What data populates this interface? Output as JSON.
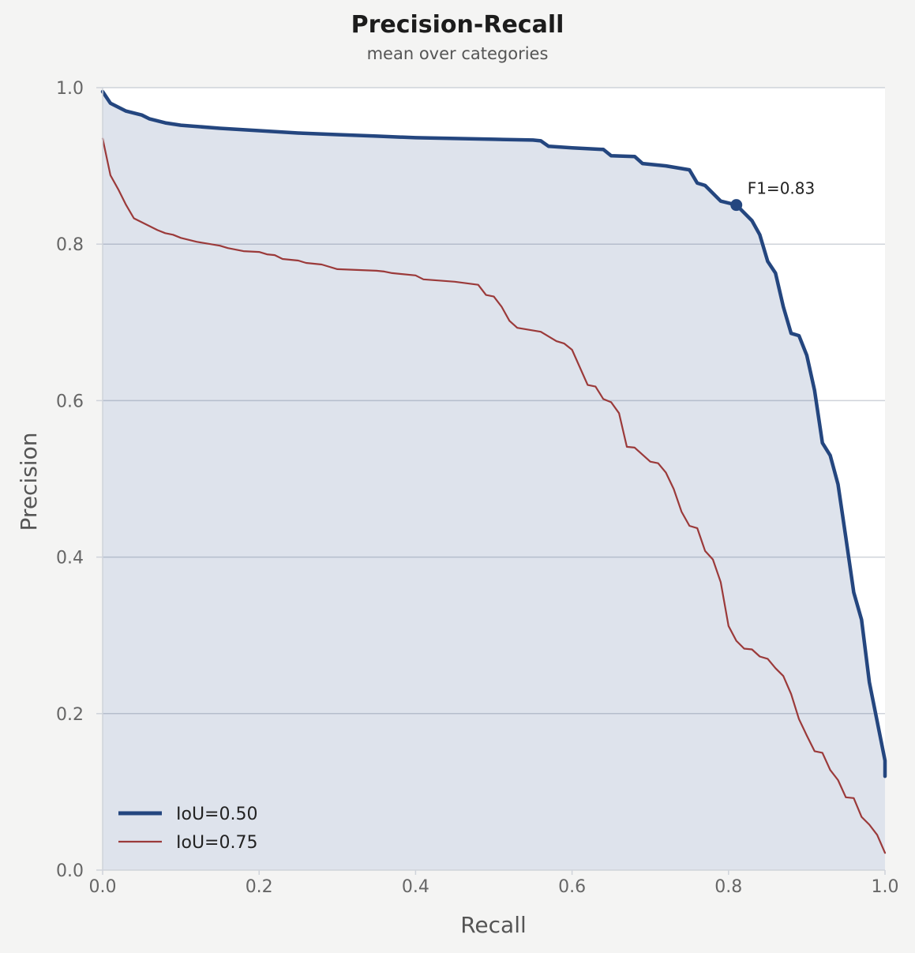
{
  "chart_data": {
    "type": "line",
    "title": "Precision-Recall",
    "subtitle": "mean over categories",
    "xlabel": "Recall",
    "ylabel": "Precision",
    "xlim": [
      0.0,
      1.0
    ],
    "ylim": [
      0.0,
      1.0
    ],
    "xticks": [
      "0.0",
      "0.2",
      "0.4",
      "0.6",
      "0.8",
      "1.0"
    ],
    "yticks": [
      "0.0",
      "0.2",
      "0.4",
      "0.6",
      "0.8",
      "1.0"
    ],
    "grid": "horizontal",
    "legend_position": "bottom-left",
    "series": [
      {
        "name": "IoU=0.50",
        "color": "#24467f",
        "filled": true,
        "x": [
          0.0,
          0.01,
          0.03,
          0.05,
          0.06,
          0.08,
          0.1,
          0.15,
          0.2,
          0.25,
          0.3,
          0.35,
          0.4,
          0.45,
          0.5,
          0.55,
          0.56,
          0.57,
          0.6,
          0.64,
          0.65,
          0.68,
          0.69,
          0.72,
          0.75,
          0.76,
          0.77,
          0.79,
          0.81,
          0.83,
          0.84,
          0.85,
          0.86,
          0.87,
          0.88,
          0.89,
          0.9,
          0.91,
          0.92,
          0.93,
          0.94,
          0.95,
          0.96,
          0.97,
          0.98,
          0.99,
          1.0,
          1.0
        ],
        "y": [
          0.995,
          0.98,
          0.97,
          0.965,
          0.96,
          0.955,
          0.952,
          0.948,
          0.945,
          0.942,
          0.94,
          0.938,
          0.936,
          0.935,
          0.934,
          0.933,
          0.932,
          0.925,
          0.923,
          0.921,
          0.913,
          0.912,
          0.903,
          0.9,
          0.895,
          0.878,
          0.875,
          0.855,
          0.85,
          0.83,
          0.812,
          0.778,
          0.763,
          0.72,
          0.686,
          0.683,
          0.658,
          0.613,
          0.546,
          0.53,
          0.493,
          0.425,
          0.355,
          0.32,
          0.24,
          0.19,
          0.14,
          0.12
        ]
      },
      {
        "name": "IoU=0.75",
        "color": "#9b3a3a",
        "filled": false,
        "x": [
          0.0,
          0.01,
          0.02,
          0.03,
          0.04,
          0.05,
          0.07,
          0.08,
          0.09,
          0.1,
          0.12,
          0.15,
          0.16,
          0.18,
          0.2,
          0.21,
          0.22,
          0.23,
          0.25,
          0.26,
          0.28,
          0.3,
          0.35,
          0.36,
          0.37,
          0.4,
          0.41,
          0.45,
          0.48,
          0.49,
          0.5,
          0.51,
          0.52,
          0.53,
          0.56,
          0.58,
          0.59,
          0.6,
          0.62,
          0.63,
          0.64,
          0.65,
          0.66,
          0.67,
          0.68,
          0.7,
          0.71,
          0.72,
          0.73,
          0.74,
          0.75,
          0.76,
          0.77,
          0.78,
          0.79,
          0.8,
          0.81,
          0.82,
          0.83,
          0.84,
          0.85,
          0.86,
          0.87,
          0.88,
          0.89,
          0.9,
          0.91,
          0.92,
          0.93,
          0.94,
          0.95,
          0.96,
          0.97,
          0.98,
          0.99,
          1.0
        ],
        "y": [
          0.935,
          0.888,
          0.87,
          0.85,
          0.833,
          0.828,
          0.818,
          0.814,
          0.812,
          0.808,
          0.803,
          0.798,
          0.795,
          0.791,
          0.79,
          0.787,
          0.786,
          0.781,
          0.779,
          0.776,
          0.774,
          0.768,
          0.766,
          0.765,
          0.763,
          0.76,
          0.755,
          0.752,
          0.748,
          0.735,
          0.733,
          0.72,
          0.702,
          0.693,
          0.688,
          0.676,
          0.673,
          0.665,
          0.62,
          0.618,
          0.602,
          0.598,
          0.584,
          0.541,
          0.54,
          0.522,
          0.52,
          0.508,
          0.487,
          0.458,
          0.44,
          0.437,
          0.408,
          0.397,
          0.368,
          0.312,
          0.293,
          0.283,
          0.282,
          0.273,
          0.27,
          0.258,
          0.248,
          0.225,
          0.193,
          0.172,
          0.152,
          0.15,
          0.128,
          0.115,
          0.093,
          0.092,
          0.068,
          0.058,
          0.045,
          0.022
        ]
      }
    ],
    "annotation": {
      "text": "F1=0.83",
      "x": 0.81,
      "y": 0.85,
      "series": "IoU=0.50"
    }
  }
}
